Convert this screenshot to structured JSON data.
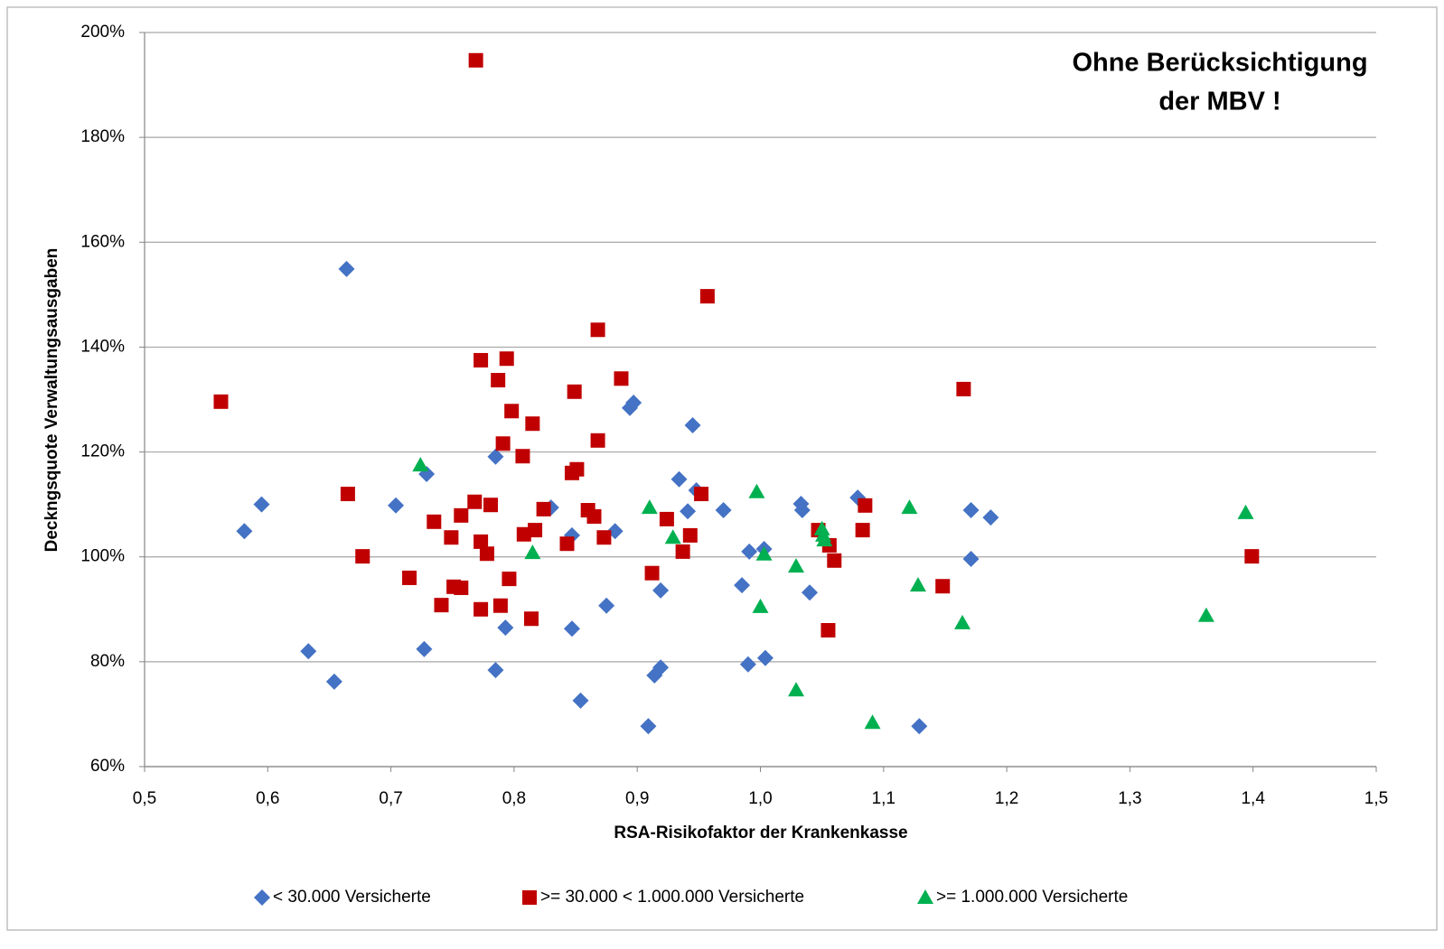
{
  "chart_data": {
    "type": "scatter",
    "annotation": [
      "Ohne Berücksichtigung",
      "der MBV !"
    ],
    "annotation_color": "#ff0000",
    "xlabel": "RSA-Risikofaktor der Krankenkasse",
    "ylabel": "Deckngsquote Verwaltungsausgaben",
    "xlim": [
      0.5,
      1.5
    ],
    "xticks": [
      {
        "value": 0.5,
        "label": "0,5"
      },
      {
        "value": 0.6,
        "label": "0,6"
      },
      {
        "value": 0.7,
        "label": "0,7"
      },
      {
        "value": 0.8,
        "label": "0,8"
      },
      {
        "value": 0.9,
        "label": "0,9"
      },
      {
        "value": 1.0,
        "label": "1,0"
      },
      {
        "value": 1.1,
        "label": "1,1"
      },
      {
        "value": 1.2,
        "label": "1,2"
      },
      {
        "value": 1.3,
        "label": "1,3"
      },
      {
        "value": 1.4,
        "label": "1,4"
      },
      {
        "value": 1.5,
        "label": "1,5"
      }
    ],
    "ylim": [
      60,
      200
    ],
    "yticks": [
      {
        "value": 60,
        "label": "60%"
      },
      {
        "value": 80,
        "label": "80%"
      },
      {
        "value": 100,
        "label": "100%"
      },
      {
        "value": 120,
        "label": "120%"
      },
      {
        "value": 140,
        "label": "140%"
      },
      {
        "value": 160,
        "label": "160%"
      },
      {
        "value": 180,
        "label": "180%"
      },
      {
        "value": 200,
        "label": "200%"
      }
    ],
    "grid": true,
    "legend": "bottom",
    "series": [
      {
        "name": "< 30.000 Versicherte",
        "color": "#4472c4",
        "marker": "diamond",
        "x": [
          0.664,
          0.581,
          0.595,
          0.633,
          0.654,
          0.704,
          0.729,
          0.727,
          0.785,
          0.793,
          0.785,
          0.83,
          0.847,
          0.847,
          0.854,
          0.882,
          0.875,
          0.894,
          0.897,
          0.909,
          0.914,
          0.919,
          0.919,
          0.934,
          0.941,
          0.945,
          0.948,
          0.97,
          0.985,
          0.991,
          1.003,
          0.99,
          1.004,
          1.033,
          1.034,
          1.04,
          1.079,
          1.129,
          1.171,
          1.171,
          1.187
        ],
        "y": [
          154.9,
          104.9,
          110,
          82,
          76.2,
          109.8,
          115.8,
          82.4,
          119.1,
          86.5,
          78.4,
          109.4,
          104.1,
          86.3,
          72.6,
          104.9,
          90.7,
          128.4,
          129.4,
          67.7,
          77.4,
          78.9,
          93.6,
          114.8,
          108.7,
          125.1,
          112.7,
          108.9,
          94.6,
          101,
          101.5,
          79.5,
          80.7,
          110.1,
          108.9,
          93.2,
          111.3,
          67.7,
          108.9,
          99.6,
          107.5
        ]
      },
      {
        "name": ">= 30.000 < 1.000.000 Versicherte",
        "color": "#c00000",
        "marker": "square",
        "x": [
          0.769,
          0.562,
          0.665,
          0.677,
          0.715,
          0.735,
          0.741,
          0.749,
          0.751,
          0.757,
          0.757,
          0.768,
          0.773,
          0.773,
          0.773,
          0.778,
          0.781,
          0.787,
          0.789,
          0.791,
          0.794,
          0.796,
          0.798,
          0.807,
          0.808,
          0.814,
          0.815,
          0.817,
          0.824,
          0.843,
          0.847,
          0.849,
          0.851,
          0.86,
          0.865,
          0.868,
          0.868,
          0.873,
          0.887,
          0.912,
          0.924,
          0.937,
          0.943,
          0.952,
          0.957,
          1.047,
          1.056,
          1.06,
          1.055,
          1.085,
          1.083,
          1.148,
          1.165,
          1.399
        ],
        "y": [
          194.7,
          129.6,
          112,
          100.1,
          96,
          106.7,
          90.8,
          103.7,
          94.3,
          107.9,
          94.1,
          110.5,
          137.5,
          102.9,
          90,
          100.6,
          109.9,
          133.7,
          90.7,
          121.6,
          137.8,
          95.8,
          127.8,
          119.2,
          104.3,
          88.2,
          125.4,
          105.1,
          109.1,
          102.5,
          116,
          131.5,
          116.7,
          108.9,
          107.7,
          143.3,
          122.2,
          103.7,
          134,
          96.9,
          107.2,
          101,
          104.1,
          112,
          149.7,
          105.1,
          102.2,
          99.3,
          86,
          109.8,
          105.1,
          94.4,
          132,
          100.1
        ]
      },
      {
        "name": ">= 1.000.000 Versicherte",
        "color": "#00b050",
        "marker": "triangle",
        "x": [
          0.724,
          0.815,
          0.91,
          0.929,
          0.997,
          1.003,
          1.0,
          1.029,
          1.029,
          1.05,
          1.051,
          1.052,
          1.091,
          1.121,
          1.128,
          1.164,
          1.362,
          1.394
        ],
        "y": [
          117.5,
          100.8,
          109.4,
          103.7,
          112.4,
          100.5,
          90.5,
          98.2,
          74.6,
          105.3,
          104.1,
          103.2,
          68.4,
          109.4,
          94.6,
          87.4,
          88.8,
          108.4
        ]
      }
    ]
  }
}
